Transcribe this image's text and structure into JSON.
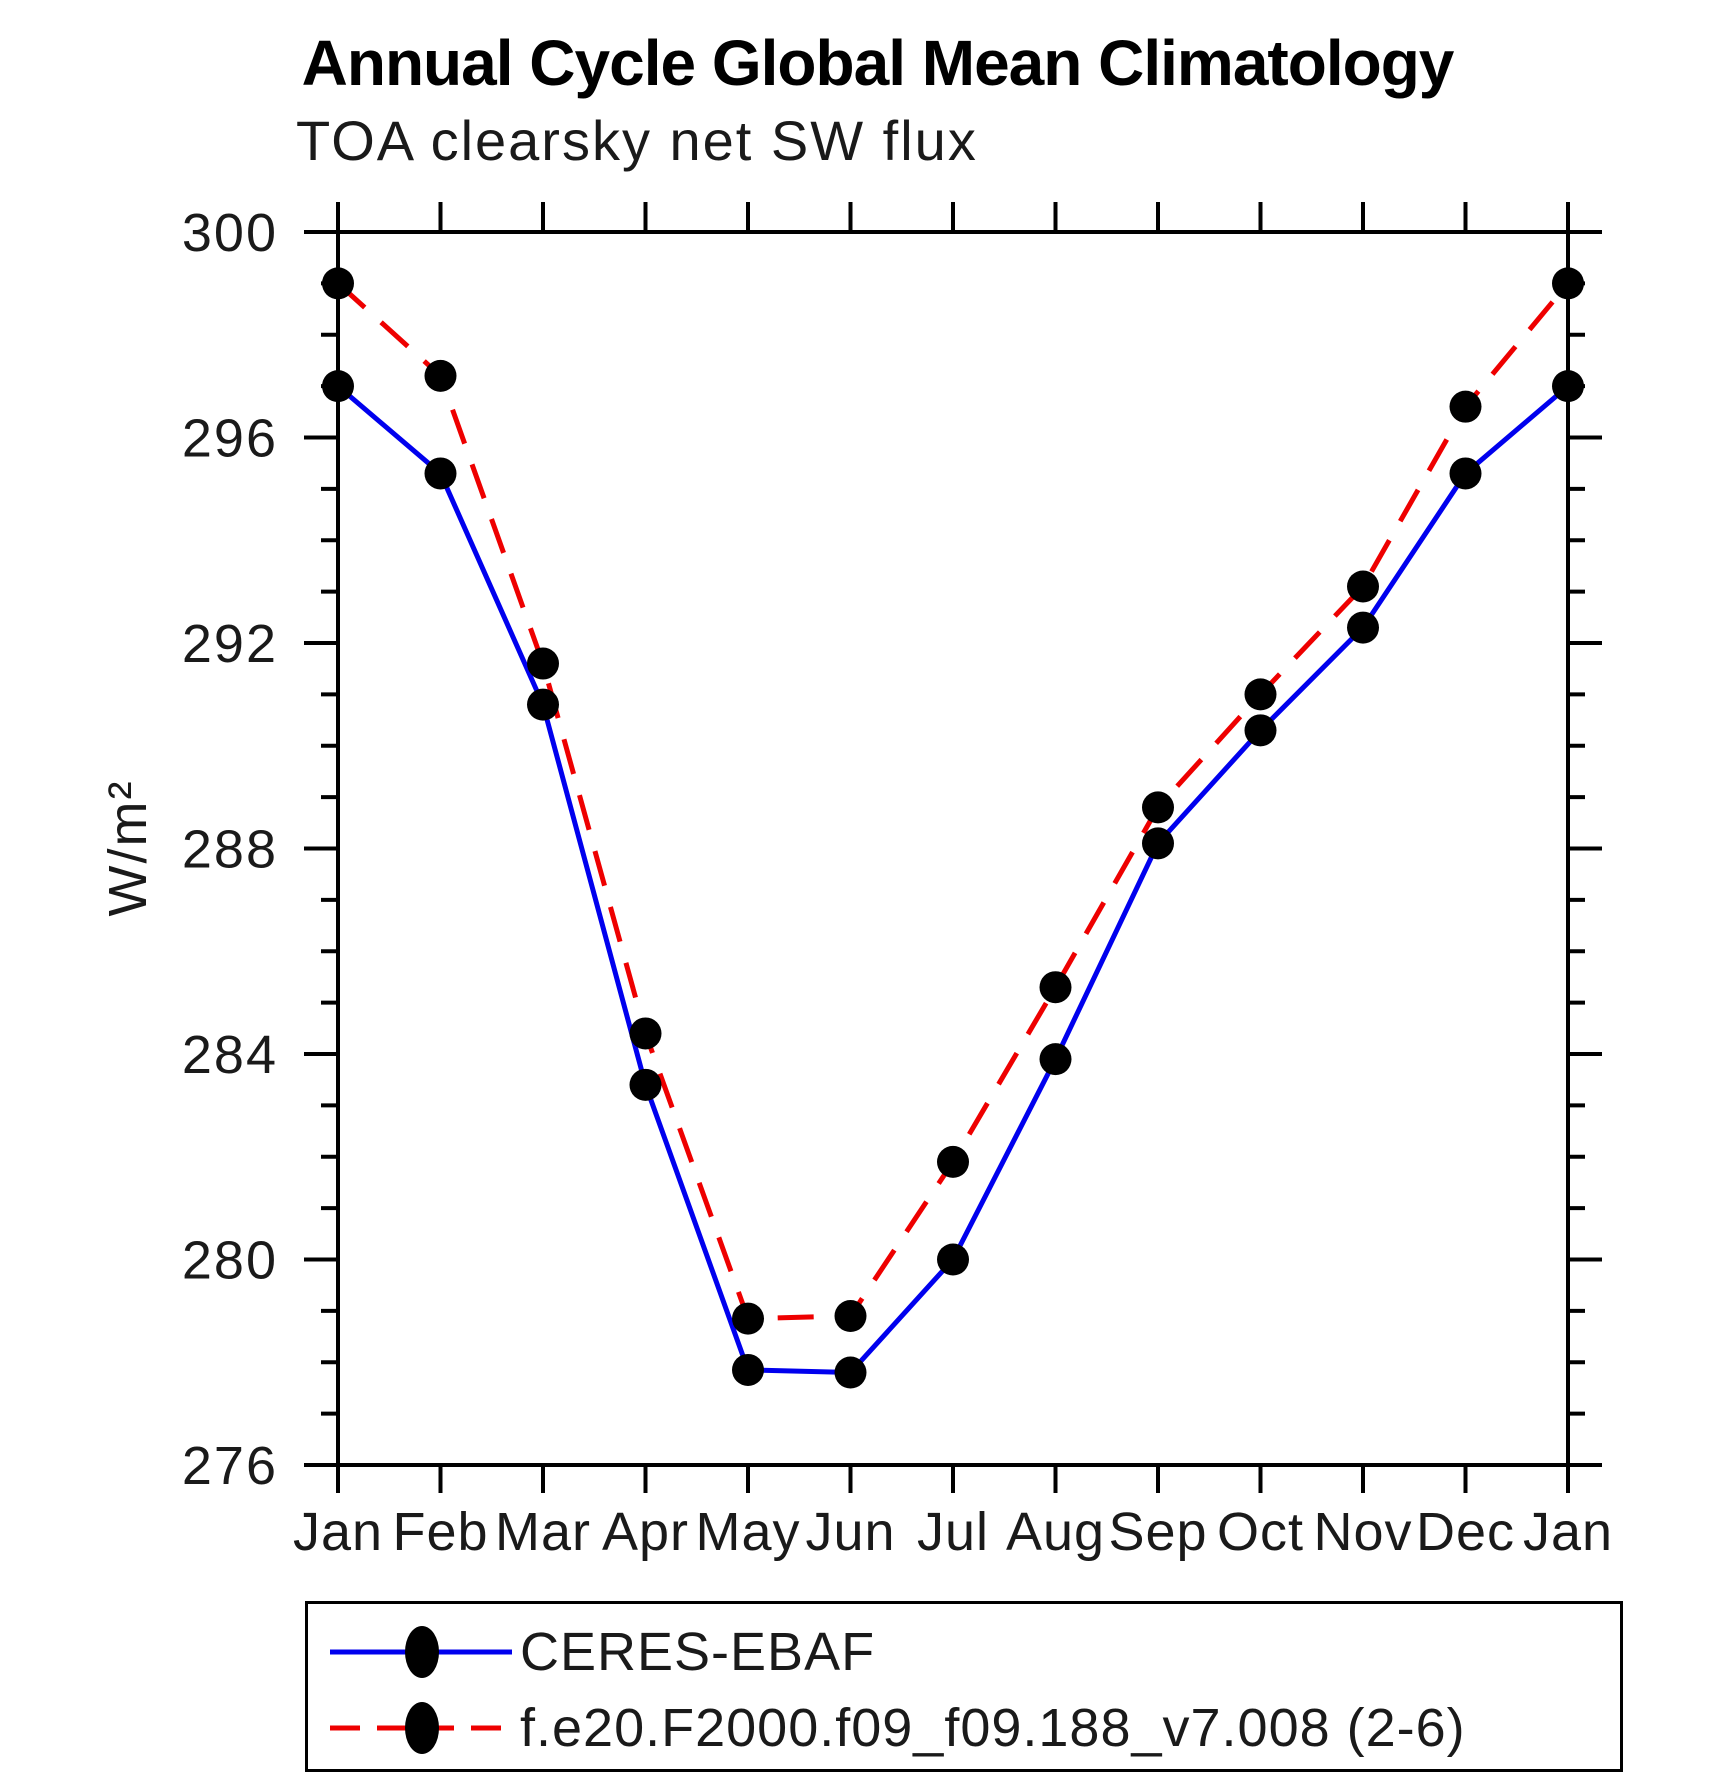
{
  "title": "Annual Cycle Global Mean Climatology",
  "subtitle": "TOA clearsky net SW flux",
  "chart_data": {
    "type": "line",
    "categories": [
      "Jan",
      "Feb",
      "Mar",
      "Apr",
      "May",
      "Jun",
      "Jul",
      "Aug",
      "Sep",
      "Oct",
      "Nov",
      "Dec",
      "Jan"
    ],
    "series": [
      {
        "name": "CERES-EBAF",
        "color": "#0000ee",
        "line_style": "solid",
        "marker": "filled-circle",
        "marker_color": "#000000",
        "values": [
          297.0,
          295.3,
          290.8,
          283.4,
          277.85,
          277.8,
          280.0,
          283.9,
          288.1,
          290.3,
          292.3,
          295.3,
          297.0
        ]
      },
      {
        "name": "f.e20.F2000.f09_f09.188_v7.008 (2-6)",
        "color": "#ee0000",
        "line_style": "dashed",
        "marker": "filled-circle",
        "marker_color": "#000000",
        "values": [
          299.0,
          297.2,
          291.6,
          284.4,
          278.85,
          278.9,
          281.9,
          285.3,
          288.8,
          291.0,
          293.1,
          296.6,
          299.0
        ]
      }
    ],
    "xlabel": "",
    "ylabel": "W/m²",
    "ylim": [
      276,
      300
    ],
    "yticks_major": [
      276,
      280,
      284,
      288,
      292,
      296,
      300
    ],
    "ytick_minor_step": 1,
    "grid": false,
    "legend_position": "bottom",
    "axis_color": "#000000"
  }
}
